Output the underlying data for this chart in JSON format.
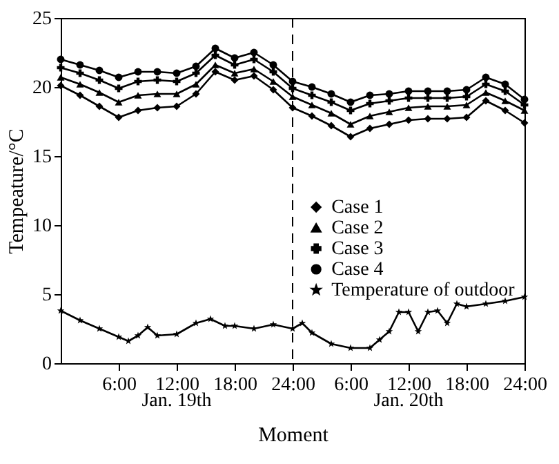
{
  "chart_data": {
    "type": "line",
    "xlabel": "Moment",
    "ylabel": "Tempeature/°C",
    "x": [
      "--01-19T00:00",
      "--01-19T02:00",
      "--01-19T04:00",
      "--01-19T06:00",
      "--01-19T08:00",
      "--01-19T10:00",
      "--01-19T12:00",
      "--01-19T14:00",
      "--01-19T16:00",
      "--01-19T18:00",
      "--01-19T20:00",
      "--01-19T22:00",
      "--01-20T00:00",
      "--01-20T02:00",
      "--01-20T04:00",
      "--01-20T06:00",
      "--01-20T08:00",
      "--01-20T10:00",
      "--01-20T12:00",
      "--01-20T14:00",
      "--01-20T16:00",
      "--01-20T18:00",
      "--01-20T20:00",
      "--01-20T22:00",
      "--01-21T00:00"
    ],
    "xlim": [
      "--01-19T00:00",
      "--01-21T00:00"
    ],
    "xticks": [
      {
        "value": "--01-19T06:00",
        "label": "6:00"
      },
      {
        "value": "--01-19T12:00",
        "label": "12:00"
      },
      {
        "value": "--01-19T18:00",
        "label": "18:00"
      },
      {
        "value": "--01-20T00:00",
        "label": "24:00"
      },
      {
        "value": "--01-20T06:00",
        "label": "6:00"
      },
      {
        "value": "--01-20T12:00",
        "label": "12:00"
      },
      {
        "value": "--01-20T18:00",
        "label": "18:00"
      },
      {
        "value": "--01-21T00:00",
        "label": "24:00"
      }
    ],
    "ylim": [
      0,
      25
    ],
    "yticks": [
      0,
      5,
      10,
      15,
      20,
      25
    ],
    "legend": "right",
    "series": [
      {
        "name": "Case 1",
        "color": "#000000",
        "marker": "diamond",
        "values": [
          20.1,
          19.4,
          18.6,
          17.8,
          18.3,
          18.5,
          18.6,
          19.5,
          21.1,
          20.5,
          20.8,
          19.8,
          18.5,
          17.9,
          17.2,
          16.4,
          17.0,
          17.3,
          17.6,
          17.7,
          17.7,
          17.8,
          19.0,
          18.3,
          17.4
        ]
      },
      {
        "name": "Case 2",
        "color": "#000000",
        "marker": "triangle",
        "values": [
          20.7,
          20.2,
          19.6,
          18.9,
          19.4,
          19.5,
          19.5,
          20.2,
          21.6,
          21.0,
          21.3,
          20.4,
          19.3,
          18.7,
          18.1,
          17.3,
          17.9,
          18.2,
          18.5,
          18.6,
          18.6,
          18.7,
          19.6,
          19.0,
          18.3
        ]
      },
      {
        "name": "Case 3",
        "color": "#000000",
        "marker": "cross",
        "values": [
          21.4,
          21.0,
          20.5,
          19.9,
          20.4,
          20.5,
          20.4,
          21.0,
          22.3,
          21.6,
          22.0,
          21.1,
          19.9,
          19.4,
          18.9,
          18.3,
          18.8,
          19.0,
          19.2,
          19.2,
          19.2,
          19.3,
          20.2,
          19.7,
          18.7
        ]
      },
      {
        "name": "Case 4",
        "color": "#000000",
        "marker": "circle",
        "values": [
          22.0,
          21.6,
          21.2,
          20.7,
          21.1,
          21.1,
          21.0,
          21.5,
          22.8,
          22.1,
          22.5,
          21.6,
          20.4,
          20.0,
          19.5,
          18.9,
          19.4,
          19.5,
          19.7,
          19.7,
          19.7,
          19.8,
          20.7,
          20.2,
          19.1
        ]
      },
      {
        "name": "Temperature of outdoor",
        "color": "#000000",
        "marker": "star",
        "x": [
          "--01-19T00:00",
          "--01-19T02:00",
          "--01-19T04:00",
          "--01-19T06:00",
          "--01-19T07:00",
          "--01-19T08:00",
          "--01-19T09:00",
          "--01-19T10:00",
          "--01-19T12:00",
          "--01-19T14:00",
          "--01-19T15:30",
          "--01-19T17:00",
          "--01-19T18:00",
          "--01-19T20:00",
          "--01-19T22:00",
          "--01-20T00:00",
          "--01-20T01:00",
          "--01-20T02:00",
          "--01-20T04:00",
          "--01-20T06:00",
          "--01-20T08:00",
          "--01-20T09:00",
          "--01-20T10:00",
          "--01-20T11:00",
          "--01-20T12:00",
          "--01-20T13:00",
          "--01-20T14:00",
          "--01-20T15:00",
          "--01-20T16:00",
          "--01-20T17:00",
          "--01-20T18:00",
          "--01-20T20:00",
          "--01-20T22:00",
          "--01-21T00:00"
        ],
        "values": [
          3.8,
          3.1,
          2.5,
          1.9,
          1.6,
          2.0,
          2.6,
          2.0,
          2.1,
          2.9,
          3.2,
          2.7,
          2.7,
          2.5,
          2.8,
          2.5,
          2.9,
          2.2,
          1.4,
          1.1,
          1.1,
          1.7,
          2.3,
          3.7,
          3.7,
          2.3,
          3.7,
          3.8,
          2.9,
          4.3,
          4.1,
          4.3,
          4.5,
          4.8
        ]
      }
    ],
    "ref_lines": [
      {
        "axis": "x",
        "value": "--01-20T00:00",
        "line_style": "dashed"
      }
    ],
    "annotations": [
      "Jan. 19th",
      "Jan. 20th"
    ]
  }
}
